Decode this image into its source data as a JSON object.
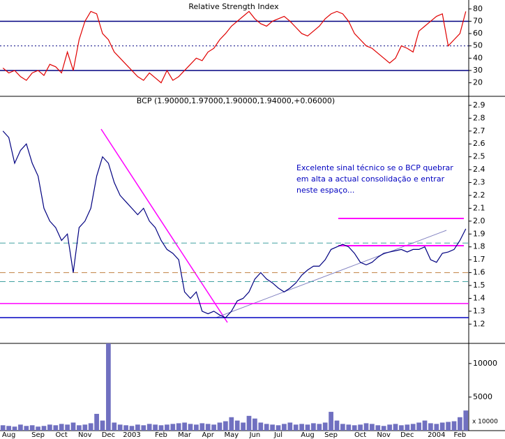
{
  "chart_data": [
    {
      "type": "line",
      "title": "Relative Strength Index",
      "color": "#e00000",
      "values": [
        32,
        28,
        30,
        25,
        22,
        28,
        30,
        26,
        35,
        33,
        28,
        45,
        30,
        55,
        70,
        78,
        76,
        60,
        55,
        45,
        40,
        35,
        30,
        25,
        22,
        28,
        24,
        20,
        30,
        22,
        25,
        30,
        35,
        40,
        38,
        45,
        48,
        55,
        60,
        66,
        70,
        74,
        78,
        72,
        68,
        66,
        70,
        72,
        74,
        70,
        65,
        60,
        58,
        62,
        66,
        72,
        76,
        78,
        76,
        70,
        60,
        55,
        50,
        48,
        44,
        40,
        36,
        40,
        50,
        48,
        45,
        62,
        66,
        70,
        74,
        76,
        50,
        55,
        60,
        78
      ],
      "ylim": [
        9,
        85
      ],
      "yticks": [
        20,
        30,
        40,
        50,
        60,
        70,
        80
      ],
      "reference_lines": [
        {
          "value": 70,
          "color": "#000080",
          "style": "solid"
        },
        {
          "value": 50,
          "color": "#000080",
          "style": "dotted"
        },
        {
          "value": 30,
          "color": "#000080",
          "style": "solid"
        }
      ]
    },
    {
      "type": "line",
      "title": "BCP (1.90000,1.97000,1.90000,1.94000,+0.06000)",
      "color": "#000080",
      "values": [
        2.7,
        2.65,
        2.45,
        2.55,
        2.6,
        2.45,
        2.35,
        2.1,
        2.0,
        1.95,
        1.85,
        1.9,
        1.6,
        1.95,
        2.0,
        2.1,
        2.35,
        2.5,
        2.45,
        2.3,
        2.2,
        2.15,
        2.1,
        2.05,
        2.1,
        2.0,
        1.95,
        1.85,
        1.78,
        1.75,
        1.7,
        1.45,
        1.4,
        1.45,
        1.3,
        1.28,
        1.3,
        1.27,
        1.25,
        1.3,
        1.38,
        1.4,
        1.45,
        1.55,
        1.6,
        1.55,
        1.52,
        1.48,
        1.45,
        1.48,
        1.52,
        1.58,
        1.62,
        1.65,
        1.65,
        1.7,
        1.78,
        1.8,
        1.82,
        1.8,
        1.75,
        1.68,
        1.66,
        1.68,
        1.72,
        1.75,
        1.76,
        1.77,
        1.78,
        1.76,
        1.78,
        1.78,
        1.8,
        1.7,
        1.68,
        1.75,
        1.76,
        1.78,
        1.85,
        1.94
      ],
      "ylim": [
        1.05,
        2.97
      ],
      "yticks": [
        1.2,
        1.3,
        1.4,
        1.5,
        1.6,
        1.7,
        1.8,
        1.9,
        {
          "value": 2,
          "label": "2.0"
        },
        2.1,
        2.2,
        2.3,
        2.4,
        2.5,
        2.6,
        2.7,
        2.8,
        2.9
      ],
      "reference_lines": [
        {
          "value": 1.25,
          "color": "#0000c0",
          "style": "solid"
        },
        {
          "value": 1.36,
          "color": "#ff00ff",
          "style": "solid"
        },
        {
          "value": 1.53,
          "color": "#40a0a0",
          "style": "dashed"
        },
        {
          "value": 1.6,
          "color": "#c08040",
          "style": "dashed"
        },
        {
          "value": 1.83,
          "color": "#40a0a0",
          "style": "dashed"
        }
      ],
      "annotation": [
        "Excelente sinal técnico se o BCP quebrar",
        "em alta a actual consolidação e entrar",
        "neste espaço..."
      ]
    },
    {
      "type": "bar",
      "color": "#7070c0",
      "unit_label": "x 10000",
      "categories": [
        null,
        "Aug",
        null,
        null,
        null,
        null,
        "Sep",
        null,
        null,
        null,
        "Oct",
        null,
        null,
        null,
        "Nov",
        null,
        null,
        null,
        "Dec",
        null,
        null,
        null,
        "2003",
        null,
        null,
        null,
        null,
        "Feb",
        null,
        null,
        null,
        "Mar",
        null,
        null,
        null,
        "Apr",
        null,
        null,
        null,
        "May",
        null,
        null,
        null,
        "Jun",
        null,
        null,
        null,
        "Jul",
        null,
        null,
        null,
        null,
        "Aug",
        null,
        null,
        null,
        "Sep",
        null,
        null,
        null,
        null,
        "Oct",
        null,
        null,
        null,
        "Nov",
        null,
        null,
        null,
        "Dec",
        null,
        null,
        null,
        null,
        "2004",
        null,
        null,
        null,
        "Feb",
        null
      ],
      "values": [
        800,
        700,
        600,
        900,
        700,
        800,
        600,
        700,
        900,
        800,
        1000,
        900,
        1200,
        800,
        900,
        1100,
        2500,
        1500,
        13000,
        1200,
        900,
        800,
        700,
        900,
        800,
        1000,
        900,
        800,
        900,
        1000,
        1100,
        1200,
        1000,
        900,
        1100,
        1000,
        900,
        1200,
        1400,
        2000,
        1500,
        1200,
        2200,
        1800,
        1200,
        1000,
        900,
        800,
        1000,
        1200,
        900,
        1000,
        900,
        1100,
        1000,
        1200,
        2800,
        1500,
        1000,
        900,
        800,
        900,
        1100,
        1000,
        800,
        700,
        900,
        1000,
        800,
        900,
        1000,
        1200,
        1500,
        1100,
        1000,
        1200,
        1300,
        1400,
        2000,
        3000
      ],
      "ylim": [
        0,
        13000
      ],
      "yticks": [
        5000,
        10000
      ]
    }
  ]
}
